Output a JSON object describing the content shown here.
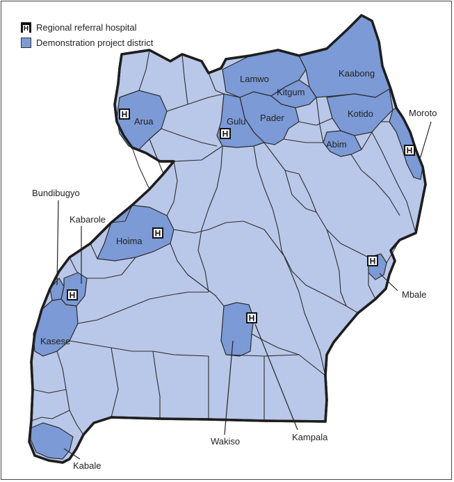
{
  "legend": {
    "hospital_label": "Regional referral hospital",
    "hospital_symbol": "H",
    "district_label": "Demonstration project district"
  },
  "colors": {
    "base_district": "#b9c8e8",
    "demo_district": "#7b9ad6",
    "border": "#2b2b2b"
  },
  "districts": {
    "lamwo": "Lamwo",
    "kitgum": "Kitgum",
    "kaabong": "Kaabong",
    "pader": "Pader",
    "kotido": "Kotido",
    "abim": "Abim",
    "arua": "Arua",
    "gulu": "Gulu",
    "hoima": "Hoima",
    "kasese": "Kasese"
  },
  "callouts": {
    "moroto": "Moroto",
    "bundibugyo": "Bundibugyo",
    "kabarole": "Kabarole",
    "mbale": "Mbale",
    "wakiso": "Wakiso",
    "kampala": "Kampala",
    "kabale": "Kabale"
  },
  "hospital_marker": "H"
}
